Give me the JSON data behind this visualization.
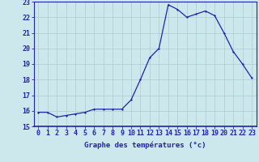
{
  "hours": [
    0,
    1,
    2,
    3,
    4,
    5,
    6,
    7,
    8,
    9,
    10,
    11,
    12,
    13,
    14,
    15,
    16,
    17,
    18,
    19,
    20,
    21,
    22,
    23
  ],
  "temps": [
    15.9,
    15.9,
    15.6,
    15.7,
    15.8,
    15.9,
    16.1,
    16.1,
    16.1,
    16.1,
    16.7,
    18.0,
    19.4,
    20.0,
    22.8,
    22.5,
    22.0,
    22.2,
    22.4,
    22.1,
    21.0,
    19.8,
    19.0,
    18.1
  ],
  "line_color": "#2222aa",
  "marker_color": "#2222aa",
  "bg_color": "#cce8ec",
  "grid_color": "#aacccc",
  "xlabel": "Graphe des températures (°c)",
  "ylim": [
    15,
    23
  ],
  "xlim": [
    -0.5,
    23.5
  ],
  "yticks": [
    15,
    16,
    17,
    18,
    19,
    20,
    21,
    22,
    23
  ],
  "xtick_labels": [
    "0",
    "1",
    "2",
    "3",
    "4",
    "5",
    "6",
    "7",
    "8",
    "9",
    "10",
    "11",
    "12",
    "13",
    "14",
    "15",
    "16",
    "17",
    "18",
    "19",
    "20",
    "21",
    "22",
    "23"
  ],
  "xlabel_color": "#2222aa",
  "xlabel_fontsize": 6.5,
  "tick_fontsize": 6.0,
  "tick_color": "#2222aa",
  "axis_color": "#2222aa",
  "linewidth": 0.9,
  "markersize": 2.2
}
